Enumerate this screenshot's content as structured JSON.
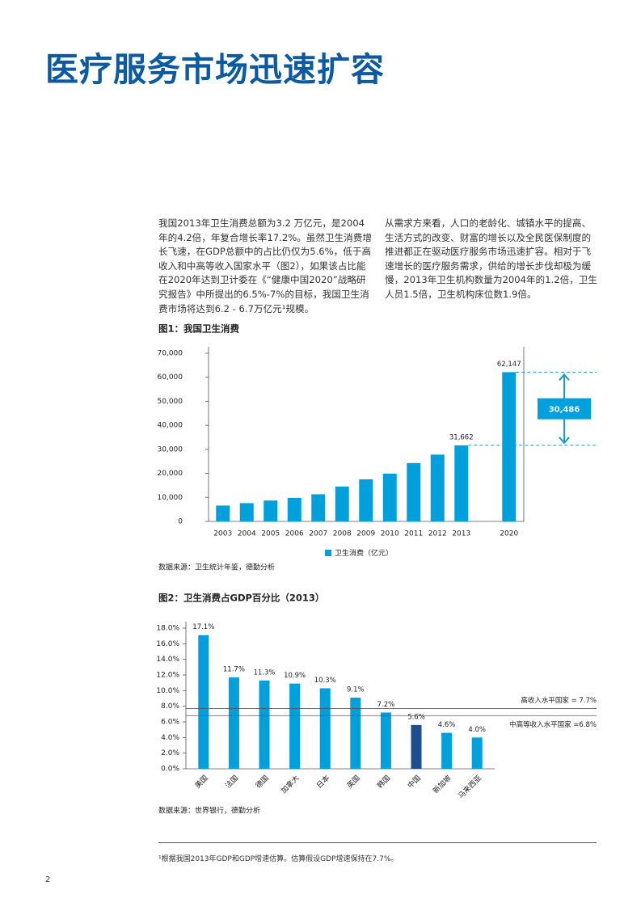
{
  "title": "医疗服务市场迅速扩容",
  "paragraphs": [
    "我国2013年卫生消费总额为3.2 万亿元，是2004年的4.2倍，年复合增长率17.2%。虽然卫生消费增长飞速，在GDP总额中的占比仍仅为5.6%，低于高收入和中高等收入国家水平（图2），如果该占比能在2020年达到卫计委在《“健康中国2020”战略研究报告》中所提出的6.5%-7%的目标，我国卫生消费市场将达到6.2 - 6.7万亿元¹规模。",
    "从需求方来看，人口的老龄化、城镇水平的提高、生活方式的改变、财富的增长以及全民医保制度的推进都正在驱动医疗服务市场迅速扩容。相对于飞速增长的医疗服务需求，供给的增长步伐却极为缓慢，2013年卫生机构数量为2004年的1.2倍，卫生人员1.5倍，卫生机构床位数1.9倍。"
  ],
  "chart_data": [
    {
      "type": "bar",
      "title": "图1：我国卫生消费",
      "categories": [
        "2003",
        "2004",
        "2005",
        "2006",
        "2007",
        "2008",
        "2009",
        "2010",
        "2011",
        "2012",
        "2013",
        null,
        "2020"
      ],
      "series": [
        {
          "name": "卫生消费（亿元）",
          "color": "#00a0dc",
          "values": [
            6600,
            7600,
            8700,
            9800,
            11300,
            14500,
            17500,
            19900,
            24300,
            27800,
            31662,
            null,
            62147
          ],
          "value_labels": [
            null,
            null,
            null,
            null,
            null,
            null,
            null,
            null,
            null,
            null,
            "31,662",
            null,
            "62,147"
          ]
        }
      ],
      "annotation": "30,486",
      "ylim": [
        0,
        70000
      ],
      "yticks": [
        0,
        {
          "value": 10000,
          "label": "10,000"
        },
        {
          "value": 20000,
          "label": "20,000"
        },
        {
          "value": 30000,
          "label": "30,000"
        },
        {
          "value": 40000,
          "label": "40,000"
        },
        {
          "value": 50000,
          "label": "50,000"
        },
        {
          "value": 60000,
          "label": "60,000"
        },
        {
          "value": 70000,
          "label": "70,000"
        }
      ],
      "grid": false,
      "legend": "bottom",
      "source": "数据来源：卫生统计年鉴，德勤分析"
    },
    {
      "type": "bar",
      "title": "图2：卫生消费占GDP百分比（2013）",
      "categories": [
        "美国",
        "法国",
        "德国",
        "加拿大",
        "日本",
        "英国",
        "韩国",
        "中国",
        "新加坡",
        "马来西亚"
      ],
      "values": [
        17.1,
        11.7,
        11.3,
        10.9,
        10.3,
        9.1,
        7.2,
        5.6,
        4.6,
        4.0
      ],
      "value_labels": [
        "17.1%",
        "11.7%",
        "11.3%",
        "10.9%",
        "10.3%",
        "9.1%",
        "7.2%",
        "5.6%",
        "4.6%",
        "4.0%"
      ],
      "colors": [
        "#00a0dc",
        "#00a0dc",
        "#00a0dc",
        "#00a0dc",
        "#00a0dc",
        "#00a0dc",
        "#00a0dc",
        "#1d4e8f",
        "#00a0dc",
        "#00a0dc"
      ],
      "reference_lines": [
        {
          "value": 7.7,
          "label": "高收入水平国家 = 7.7%"
        },
        {
          "value": 6.8,
          "label": "中高等收入水平国家 =6.8%"
        }
      ],
      "ylim": [
        0,
        18
      ],
      "yticks": [
        {
          "value": 0,
          "label": "0.0%"
        },
        {
          "value": 2,
          "label": "2.0%"
        },
        {
          "value": 4,
          "label": "4.0%"
        },
        {
          "value": 6,
          "label": "6.0%"
        },
        {
          "value": 8,
          "label": "8.0%"
        },
        {
          "value": 10,
          "label": "10.0%"
        },
        {
          "value": 12,
          "label": "12.0%"
        },
        {
          "value": 14,
          "label": "14.0%"
        },
        {
          "value": 16,
          "label": "16.0%"
        },
        {
          "value": 18,
          "label": "18.0%"
        }
      ],
      "grid": false,
      "source": "数据来源：世界银行，德勤分析"
    }
  ],
  "footnote": "¹根据我国2013年GDP和GDP增速估算。估算假设GDP增速保持在7.7%。",
  "page_number": "2"
}
